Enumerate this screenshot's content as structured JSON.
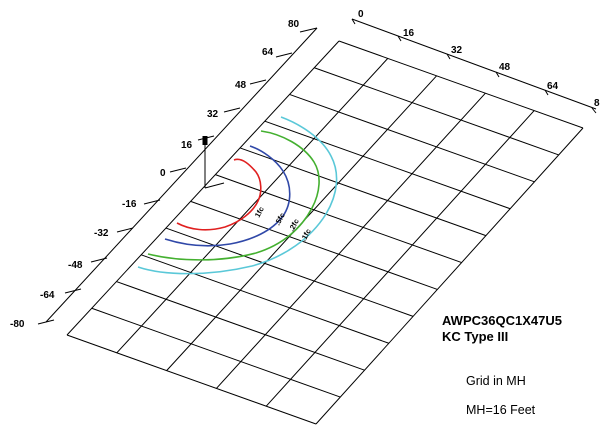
{
  "axes": {
    "left_ticks": [
      "80",
      "64",
      "48",
      "32",
      "16",
      "0",
      "-16",
      "-32",
      "-48",
      "-64",
      "-80"
    ],
    "top_ticks": [
      "0",
      "16",
      "32",
      "48",
      "64",
      "8"
    ]
  },
  "legend": {
    "fixture": "AWPC36QC1X47U5",
    "type": "KC Type III",
    "grid_note": "Grid in MH",
    "mh_note": "MH=16 Feet"
  },
  "contours": [
    {
      "label": "1fc",
      "color": "#e02020"
    },
    {
      "label": ".5fc",
      "color": "#3048a8"
    },
    {
      "label": ".2fc",
      "color": "#44b030"
    },
    {
      "label": ".1fc",
      "color": "#5ac8d8"
    }
  ]
}
